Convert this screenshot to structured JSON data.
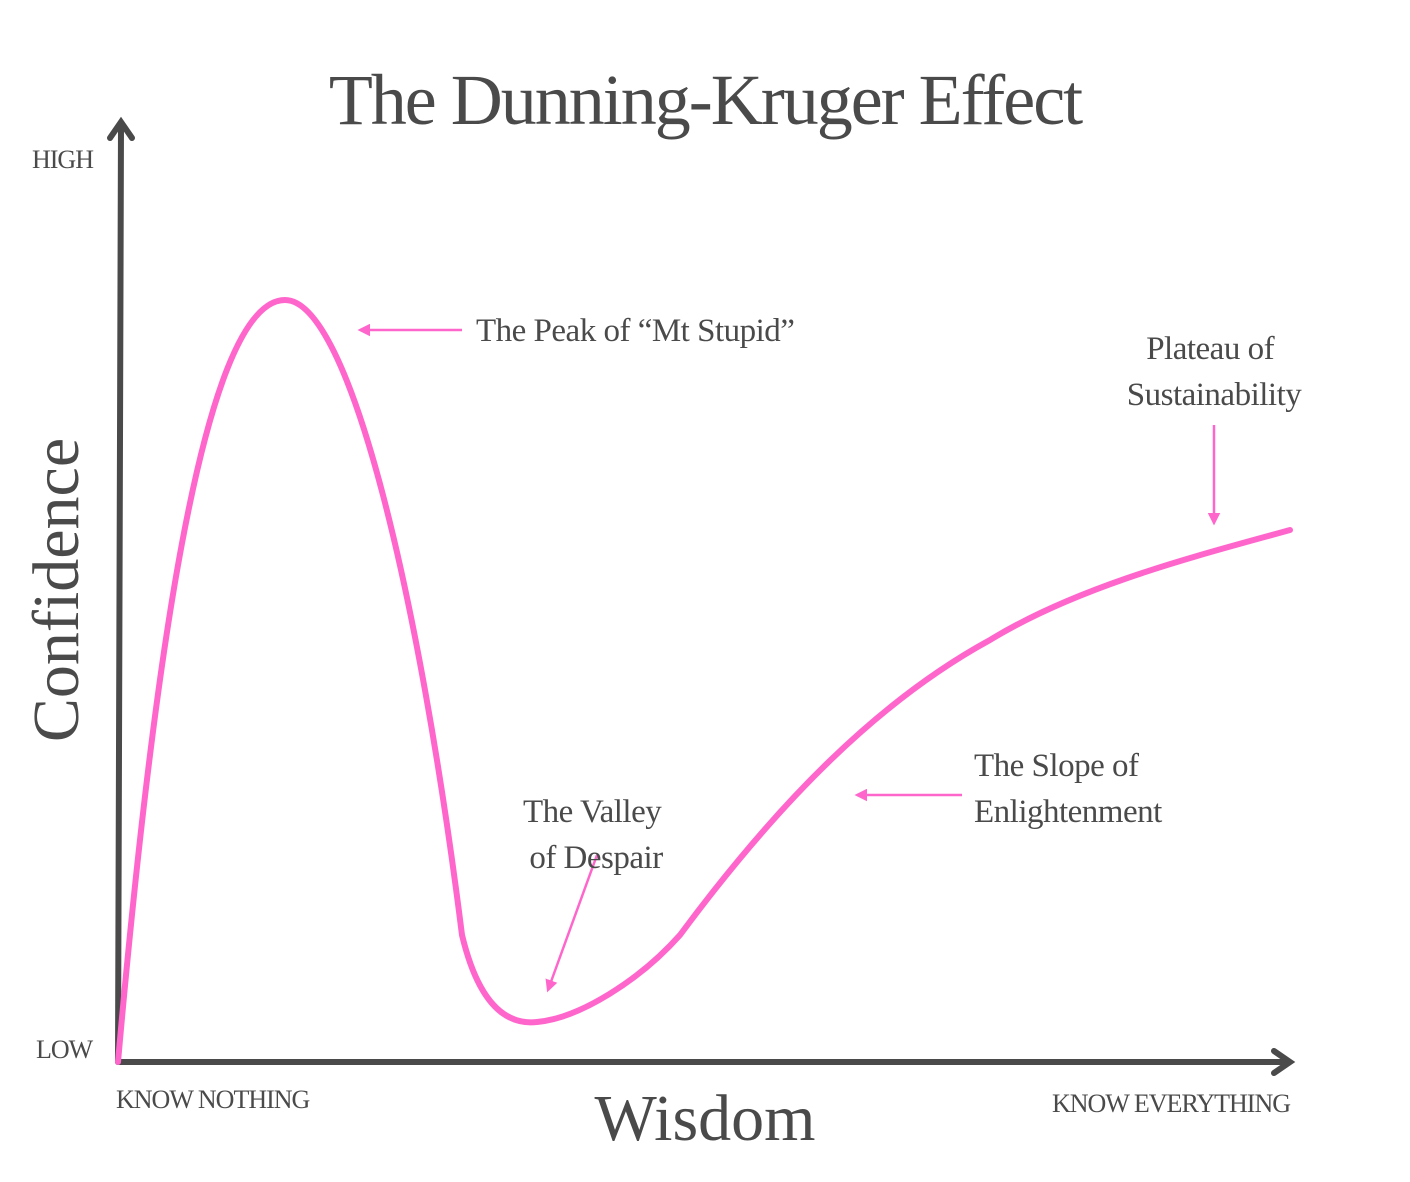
{
  "title": "The Dunning-Kruger Effect",
  "y_axis": {
    "label": "Confidence",
    "high": "HIGH",
    "low": "LOW"
  },
  "x_axis": {
    "label": "Wisdom",
    "start": "KNOW NOTHING",
    "end": "KNOW EVERYTHING"
  },
  "annotations": [
    {
      "lines": [
        "The Peak of “Mt Stupid”"
      ]
    },
    {
      "lines": [
        "The Valley",
        "of Despair"
      ]
    },
    {
      "lines": [
        "The Slope of",
        "Enlightenment"
      ]
    },
    {
      "lines": [
        "Plateau of",
        "Sustainability"
      ]
    }
  ]
}
